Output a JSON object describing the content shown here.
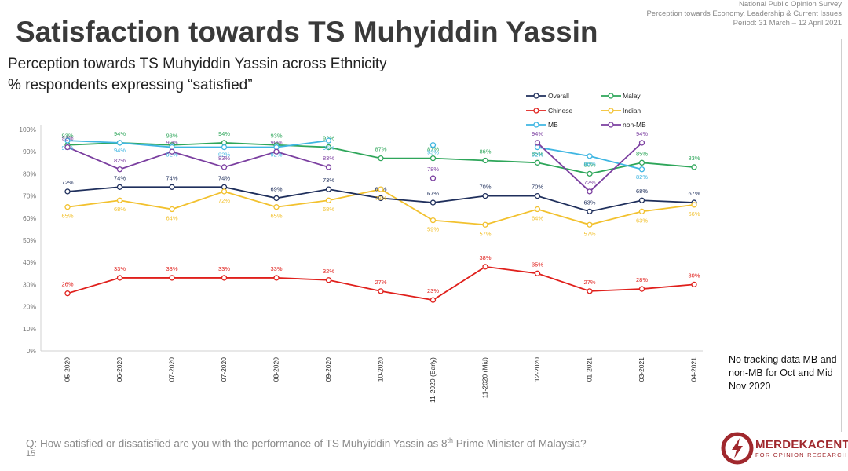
{
  "header": {
    "survey_lines": [
      "National Public Opinion Survey",
      "Perception towards Economy, Leadership & Current Issues",
      "Period: 31 March – 12 April 2021"
    ],
    "title": "Satisfaction towards TS Muhyiddin Yassin",
    "subtitle_line1": "Perception towards TS Muhyiddin Yassin across Ethnicity",
    "subtitle_line2": "% respondents expressing “satisfied”"
  },
  "note": "No tracking data MB and non-MB for Oct and Mid Nov 2020",
  "footer": {
    "question_prefix": "Q: How satisfied or dissatisfied are you with the performance of TS Muhyiddin Yassin as 8",
    "question_sup": "th",
    "question_suffix": " Prime Minister of Malaysia?",
    "page_number": "15"
  },
  "logo": {
    "name": "MERDEKACENTER",
    "tagline": "FOR OPINION RESEARCH",
    "color": "#a0282d"
  },
  "chart_data": {
    "type": "line",
    "categories": [
      "05-2020",
      "06-2020",
      "07-2020",
      "07-2020",
      "08-2020",
      "09-2020",
      "10-2020",
      "11-2020 (Early)",
      "11-2020 (Mid)",
      "12-2020",
      "01-2021",
      "03-2021",
      "04-2021"
    ],
    "ylim": [
      0,
      100
    ],
    "yticks": [
      0,
      10,
      20,
      30,
      40,
      50,
      60,
      70,
      80,
      90,
      100
    ],
    "ytick_labels": [
      "0%",
      "10%",
      "20%",
      "30%",
      "40%",
      "50%",
      "60%",
      "70%",
      "80%",
      "90%",
      "100%"
    ],
    "value_suffix": "%",
    "legend_position": "top-right",
    "grid": false,
    "series": [
      {
        "name": "Overall",
        "color": "#1f2f5c",
        "values": [
          72,
          74,
          74,
          74,
          69,
          73,
          69,
          67,
          70,
          70,
          63,
          68,
          67
        ],
        "labels": [
          "72%",
          "74%",
          "74%",
          "74%",
          "69%",
          "73%",
          "69%",
          "67%",
          "70%",
          "70%",
          "63%",
          "68%",
          "67%"
        ]
      },
      {
        "name": "Malay",
        "color": "#2ea65a",
        "values": [
          93,
          94,
          93,
          94,
          93,
          92,
          87,
          87,
          86,
          85,
          80,
          85,
          83
        ],
        "labels": [
          "93%",
          "94%",
          "93%",
          "94%",
          "93%",
          "92%",
          "87%",
          "87%",
          "86%",
          "85%",
          "80%",
          "85%",
          "83%"
        ]
      },
      {
        "name": "Chinese",
        "color": "#e0201c",
        "values": [
          26,
          33,
          33,
          33,
          33,
          32,
          27,
          23,
          38,
          35,
          27,
          28,
          30
        ],
        "labels": [
          "26%",
          "33%",
          "33%",
          "33%",
          "33%",
          "32%",
          "27%",
          "23%",
          "38%",
          "35%",
          "27%",
          "28%",
          "30%"
        ]
      },
      {
        "name": "Indian",
        "color": "#f2c12e",
        "values": [
          65,
          68,
          64,
          72,
          65,
          68,
          73,
          59,
          57,
          64,
          57,
          63,
          66
        ],
        "labels": [
          "65%",
          "68%",
          "64%",
          "72%",
          "65%",
          "68%",
          "73%",
          "59%",
          "57%",
          "64%",
          "57%",
          "63%",
          "66%"
        ]
      },
      {
        "name": "MB",
        "color": "#3fb6e2",
        "values": [
          95,
          94,
          92,
          92,
          92,
          95,
          null,
          93,
          null,
          92,
          88,
          82,
          null
        ],
        "labels": [
          "95%",
          "94%",
          "92%",
          "92%",
          "92%",
          "95%",
          "",
          "93%",
          "",
          "92%",
          "88%",
          "82%",
          ""
        ]
      },
      {
        "name": "non-MB",
        "color": "#7b3fa0",
        "values": [
          92,
          82,
          90,
          83,
          90,
          83,
          null,
          78,
          null,
          94,
          72,
          94,
          null
        ],
        "labels": [
          "92%",
          "82%",
          "90%",
          "83%",
          "90%",
          "83%",
          "",
          "78%",
          "",
          "94%",
          "72%",
          "94%",
          ""
        ]
      }
    ]
  }
}
